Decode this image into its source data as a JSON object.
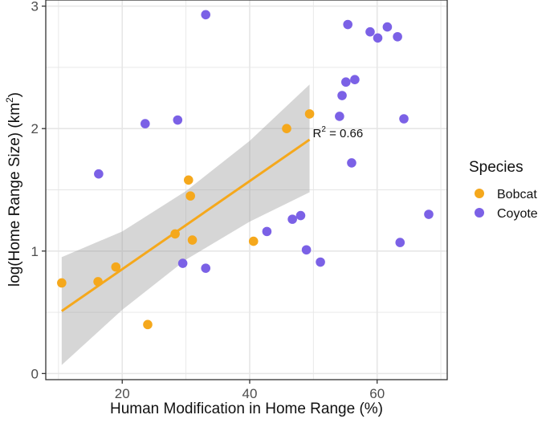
{
  "chart_data": {
    "type": "scatter",
    "xlabel": "Human Modification in Home Range (%)",
    "ylabel_main": "log(Home Range Size) (km",
    "ylabel_sup": "2",
    "ylabel_end": ")",
    "xlim": [
      8,
      71
    ],
    "ylim": [
      -0.05,
      3.05
    ],
    "x_ticks": [
      20,
      40,
      60
    ],
    "y_ticks": [
      0,
      1,
      2,
      3
    ],
    "x_tick_labels": [
      "20",
      "40",
      "60"
    ],
    "y_tick_labels": [
      "0",
      "1",
      "2",
      "3"
    ],
    "grid": true,
    "legend": {
      "title": "Species",
      "position": "right",
      "entries": [
        {
          "label": "Bobcat",
          "color": "#F5A81C"
        },
        {
          "label": "Coyote",
          "color": "#7B61E6"
        }
      ]
    },
    "series": [
      {
        "name": "Bobcat",
        "color": "#F5A81C",
        "points": [
          {
            "x": 10.5,
            "y": 0.74
          },
          {
            "x": 16.2,
            "y": 0.75
          },
          {
            "x": 19.0,
            "y": 0.87
          },
          {
            "x": 24.0,
            "y": 0.4
          },
          {
            "x": 28.3,
            "y": 1.14
          },
          {
            "x": 30.4,
            "y": 1.58
          },
          {
            "x": 30.7,
            "y": 1.45
          },
          {
            "x": 31.0,
            "y": 1.09
          },
          {
            "x": 40.6,
            "y": 1.08
          },
          {
            "x": 45.8,
            "y": 2.0
          },
          {
            "x": 49.4,
            "y": 2.12
          }
        ]
      },
      {
        "name": "Coyote",
        "color": "#7B61E6",
        "points": [
          {
            "x": 16.3,
            "y": 1.63
          },
          {
            "x": 23.6,
            "y": 2.04
          },
          {
            "x": 28.7,
            "y": 2.07
          },
          {
            "x": 29.5,
            "y": 0.9
          },
          {
            "x": 33.1,
            "y": 0.86
          },
          {
            "x": 33.1,
            "y": 2.93
          },
          {
            "x": 42.7,
            "y": 1.16
          },
          {
            "x": 46.7,
            "y": 1.26
          },
          {
            "x": 48.0,
            "y": 1.29
          },
          {
            "x": 48.9,
            "y": 1.01
          },
          {
            "x": 51.1,
            "y": 0.91
          },
          {
            "x": 54.1,
            "y": 2.1
          },
          {
            "x": 54.5,
            "y": 2.27
          },
          {
            "x": 55.1,
            "y": 2.38
          },
          {
            "x": 55.4,
            "y": 2.85
          },
          {
            "x": 56.0,
            "y": 1.72
          },
          {
            "x": 56.5,
            "y": 2.4
          },
          {
            "x": 58.9,
            "y": 2.79
          },
          {
            "x": 60.1,
            "y": 2.74
          },
          {
            "x": 61.6,
            "y": 2.83
          },
          {
            "x": 63.2,
            "y": 2.75
          },
          {
            "x": 63.6,
            "y": 1.07
          },
          {
            "x": 64.2,
            "y": 2.08
          },
          {
            "x": 68.1,
            "y": 1.3
          }
        ]
      }
    ],
    "fit": {
      "species": "Bobcat",
      "x": [
        10.5,
        49.4
      ],
      "y": [
        0.51,
        1.91
      ],
      "ci_x": [
        10.5,
        20,
        30,
        40,
        49.4
      ],
      "ci_lower": [
        0.07,
        0.52,
        0.93,
        1.24,
        1.48
      ],
      "ci_upper": [
        0.95,
        1.16,
        1.49,
        1.9,
        2.36
      ],
      "r2_label_main": "R",
      "r2_label_sup": "2",
      "r2_value": " = 0.66",
      "r2_x": 49.9,
      "r2_y": 1.93
    }
  }
}
